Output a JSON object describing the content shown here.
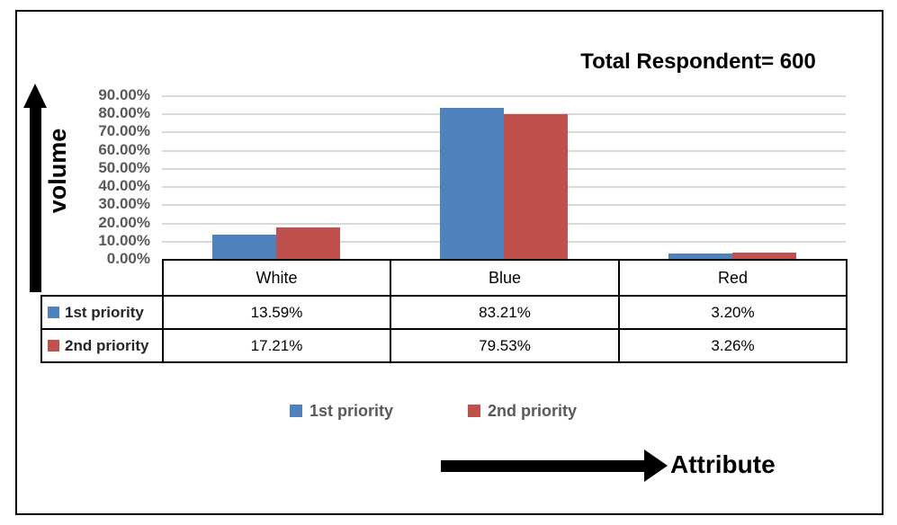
{
  "chart_data": {
    "type": "bar",
    "title": "Total Respondent= 600",
    "xlabel": "Attribute",
    "ylabel": "volume",
    "categories": [
      "White",
      "Blue",
      "Red"
    ],
    "series": [
      {
        "name": "1st priority",
        "color": "#4f81bd",
        "values": [
          13.59,
          83.21,
          3.2
        ]
      },
      {
        "name": "2nd priority",
        "color": "#c0504d",
        "values": [
          17.21,
          79.53,
          3.26
        ]
      }
    ],
    "ylim": [
      0,
      90
    ],
    "ytick_step": 10,
    "ytick_labels": [
      "0.00%",
      "10.00%",
      "20.00%",
      "30.00%",
      "40.00%",
      "50.00%",
      "60.00%",
      "70.00%",
      "80.00%",
      "90.00%"
    ],
    "grid": true,
    "gridline_color": "#d9d9d9",
    "tick_label_color": "#595959",
    "legend_position": "bottom"
  },
  "table": {
    "columns": [
      "White",
      "Blue",
      "Red"
    ],
    "rows": [
      {
        "label": "1st priority",
        "key_color": "#4f81bd",
        "cells": [
          "13.59%",
          "83.21%",
          "3.20%"
        ]
      },
      {
        "label": "2nd priority",
        "key_color": "#c0504d",
        "cells": [
          "17.21%",
          "79.53%",
          "3.26%"
        ]
      }
    ]
  },
  "legend": {
    "items": [
      {
        "label": "1st priority",
        "color": "#4f81bd"
      },
      {
        "label": "2nd priority",
        "color": "#c0504d"
      }
    ]
  }
}
